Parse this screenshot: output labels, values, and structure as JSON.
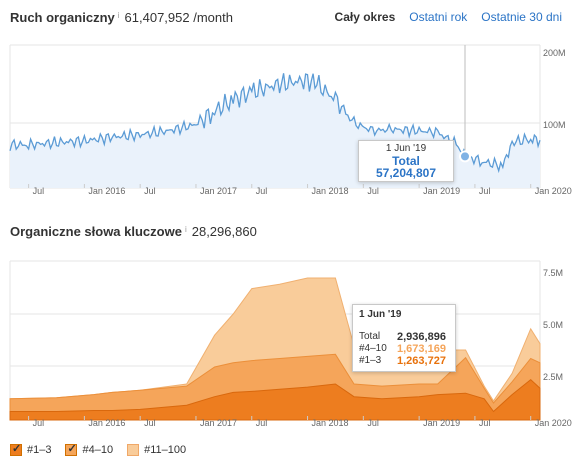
{
  "traffic": {
    "title": "Ruch organiczny",
    "info_icon": "info-icon",
    "value": "61,407,952 /month",
    "tabs": [
      {
        "label": "Cały okres",
        "active": true
      },
      {
        "label": "Ostatni rok",
        "active": false
      },
      {
        "label": "Ostatnie 30 dni",
        "active": false
      }
    ],
    "y_ticks": [
      "200M",
      "100M"
    ],
    "x_ticks": [
      "Jul",
      "Jan 2016",
      "Jul",
      "Jan 2017",
      "Jul",
      "Jan 2018",
      "Jul",
      "Jan 2019",
      "Jul",
      "Jan 2020"
    ],
    "tooltip": {
      "date": "1 Jun '19",
      "total": "Total 57,204,807"
    },
    "line_color": "#5b9bd5"
  },
  "keywords": {
    "title": "Organiczne słowa kluczowe",
    "info_icon": "info-icon",
    "value": "28,296,860",
    "y_ticks": [
      "7.5M",
      "5.0M",
      "2.5M"
    ],
    "x_ticks": [
      "Jul",
      "Jan 2016",
      "Jul",
      "Jan 2017",
      "Jul",
      "Jan 2018",
      "Jul",
      "Jan 2019",
      "Jul",
      "Jan 2020"
    ],
    "tooltip": {
      "date": "1 Jun '19",
      "rows": [
        {
          "label": "Total",
          "value": "2,936,896",
          "color": "#333333"
        },
        {
          "label": "#4–10",
          "value": "1,673,169",
          "color": "#f4a460"
        },
        {
          "label": "#1–3",
          "value": "1,263,727",
          "color": "#e8720c"
        }
      ]
    },
    "legend": [
      {
        "label": "#1–3",
        "checked": true,
        "color": "#ed7d1f"
      },
      {
        "label": "#4–10",
        "checked": true,
        "color": "#f5a55a"
      },
      {
        "label": "#11–100",
        "checked": false,
        "color": "#f9cc9a"
      }
    ]
  },
  "chart_data": [
    {
      "type": "line",
      "title": "Ruch organiczny",
      "ylabel": "",
      "ylim": [
        0,
        220000000
      ],
      "y_ticks": [
        "100M",
        "200M"
      ],
      "x_labels": [
        "Jul",
        "Jan 2016",
        "Jul",
        "Jan 2017",
        "Jul",
        "Jan 2018",
        "Jul",
        "Jan 2019",
        "Jul",
        "Jan 2020"
      ],
      "series": [
        {
          "x": [
            "2015-05",
            "2015-07",
            "2015-10",
            "2016-01",
            "2016-04",
            "2016-07",
            "2016-10",
            "2017-01",
            "2017-03",
            "2017-05",
            "2017-07",
            "2017-10",
            "2018-01",
            "2018-02",
            "2018-04",
            "2018-06",
            "2018-08",
            "2018-10",
            "2019-01",
            "2019-03",
            "2019-05",
            "2019-06",
            "2019-08",
            "2019-10",
            "2019-11",
            "2020-01",
            "2020-02"
          ],
          "values": [
            72000000,
            72000000,
            75000000,
            77000000,
            82000000,
            85000000,
            90000000,
            98000000,
            115000000,
            130000000,
            140000000,
            150000000,
            155000000,
            150000000,
            130000000,
            100000000,
            90000000,
            92000000,
            90000000,
            88000000,
            72000000,
            57204807,
            50000000,
            45000000,
            75000000,
            80000000,
            78000000
          ]
        }
      ],
      "grid": true
    },
    {
      "type": "area",
      "title": "Organiczne słowa kluczowe",
      "ylabel": "",
      "ylim": [
        0,
        8000000
      ],
      "y_ticks": [
        "2.5M",
        "5.0M",
        "7.5M"
      ],
      "x_labels": [
        "Jul",
        "Jan 2016",
        "Jul",
        "Jan 2017",
        "Jul",
        "Jan 2018",
        "Jul",
        "Jan 2019",
        "Jul",
        "Jan 2020"
      ],
      "x": [
        "2015-05",
        "2015-10",
        "2016-02",
        "2016-04",
        "2016-07",
        "2016-12",
        "2017-03",
        "2017-05",
        "2017-07",
        "2017-10",
        "2018-01",
        "2018-04",
        "2018-06",
        "2018-09",
        "2019-01",
        "2019-03",
        "2019-06",
        "2019-08",
        "2019-09",
        "2019-11",
        "2020-01",
        "2020-02"
      ],
      "series": [
        {
          "name": "#1–3",
          "values": [
            400000,
            400000,
            450000,
            450000,
            500000,
            700000,
            1100000,
            1300000,
            1350000,
            1450000,
            1550000,
            1700000,
            1100000,
            1000000,
            1100000,
            1200000,
            1263727,
            1000000,
            400000,
            1200000,
            1900000,
            1500000
          ]
        },
        {
          "name": "#4–10",
          "values": [
            1000000,
            1050000,
            1200000,
            1300000,
            1400000,
            1600000,
            2500000,
            2700000,
            2800000,
            2900000,
            3000000,
            3100000,
            1700000,
            1600000,
            1700000,
            1700000,
            2936896,
            1500000,
            800000,
            1800000,
            2900000,
            2700000
          ]
        },
        {
          "name": "#11–100",
          "values": [
            1000000,
            1050000,
            1200000,
            1300000,
            1400000,
            1700000,
            4000000,
            5000000,
            6200000,
            6400000,
            6700000,
            6700000,
            3500000,
            3400000,
            3400000,
            3300000,
            3300000,
            1600000,
            900000,
            2200000,
            4300000,
            3600000
          ]
        }
      ],
      "grid": true
    }
  ]
}
